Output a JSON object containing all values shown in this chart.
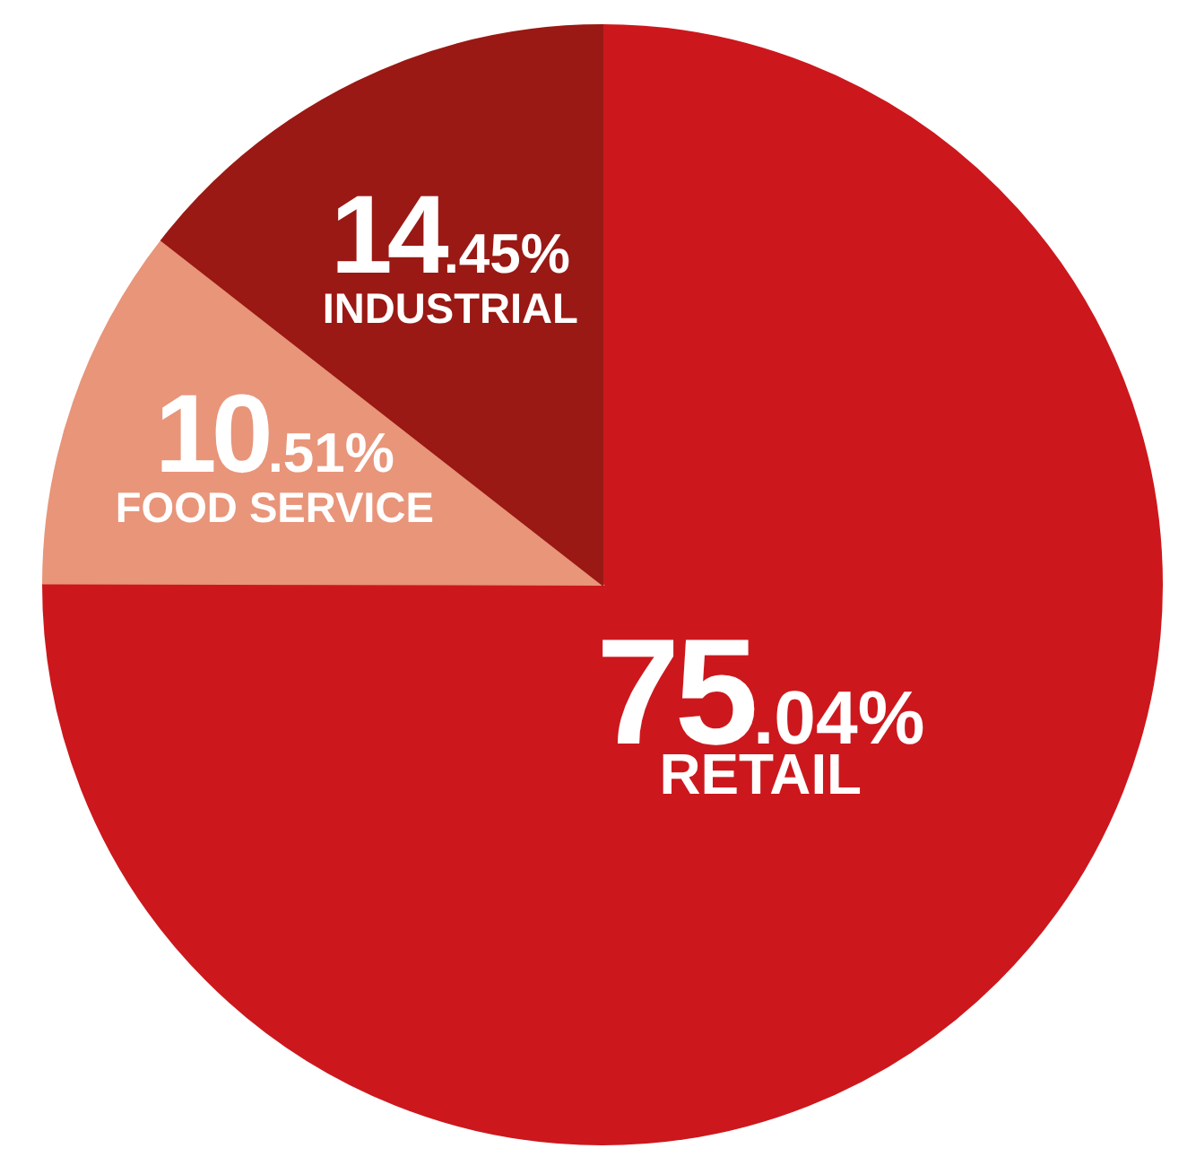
{
  "chart_data": {
    "type": "pie",
    "categories": [
      "RETAIL",
      "FOOD SERVICE",
      "INDUSTRIAL"
    ],
    "values": [
      75.04,
      10.51,
      14.45
    ],
    "colors": [
      "#cc181d",
      "#e8957a",
      "#9a1914"
    ],
    "value_labels": [
      "75.04%",
      "10.51%",
      "14.45%"
    ]
  }
}
